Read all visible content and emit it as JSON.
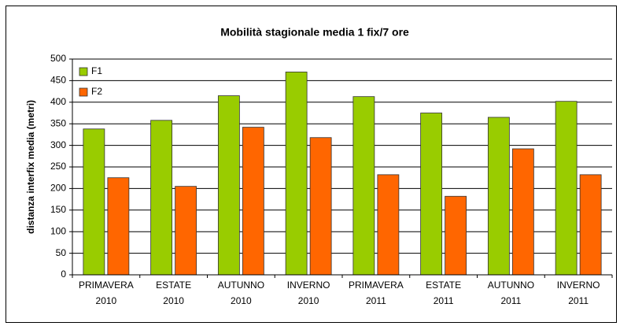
{
  "chart_data": {
    "type": "bar",
    "title": "Mobilità stagionale media 1 fix/7 ore",
    "y_label": "distanza interfix media (metri)",
    "categories": [
      "PRIMAVERA 2010",
      "ESTATE 2010",
      "AUTUNNO 2010",
      "INVERNO 2010",
      "PRIMAVERA 2011",
      "ESTATE 2011",
      "AUTUNNO 2011",
      "INVERNO 2011"
    ],
    "series": [
      {
        "name": "F1",
        "color": "#99cc00",
        "values": [
          338,
          358,
          415,
          470,
          413,
          375,
          365,
          402
        ]
      },
      {
        "name": "F2",
        "color": "#ff6600",
        "values": [
          225,
          205,
          342,
          318,
          232,
          182,
          292,
          232
        ]
      }
    ],
    "ylim": [
      0,
      500
    ],
    "yticks": [
      0,
      50,
      100,
      150,
      200,
      250,
      300,
      350,
      400,
      450,
      500
    ],
    "grid": true,
    "legend": "top-left"
  }
}
